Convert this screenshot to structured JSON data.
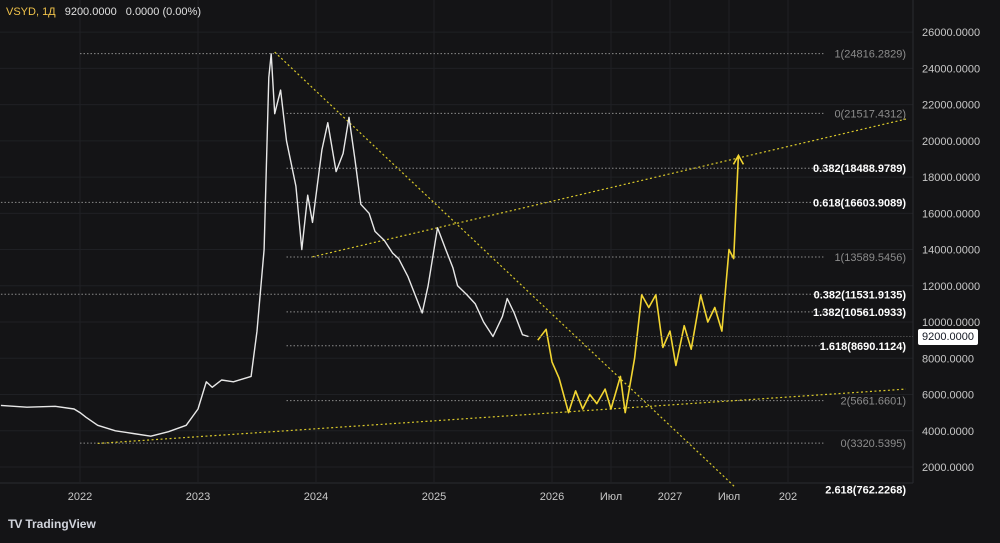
{
  "header": {
    "symbol": "VSYD, 1Д",
    "price": "9200.0000",
    "change": "0.0000 (0.00%)"
  },
  "branding": {
    "logo_text": "TradingView",
    "icon": "tradingview-logo-icon"
  },
  "current_price_label": "9200.0000",
  "colors": {
    "background": "#141416",
    "price_line": "#e8e8e8",
    "forecast_line": "#f2d531",
    "trend_line": "#d9c82a",
    "fib_line": "#8a8a8a",
    "axis_text": "#c8c8c8"
  },
  "chart_data": {
    "type": "line",
    "yaxis": {
      "min": 1000,
      "max": 26000,
      "ticks": [
        "26000.0000",
        "24000.0000",
        "22000.0000",
        "20000.0000",
        "18000.0000",
        "16000.0000",
        "14000.0000",
        "12000.0000",
        "10000.0000",
        "8000.0000",
        "6000.0000",
        "4000.0000",
        "2000.0000"
      ]
    },
    "xaxis": {
      "ticks": [
        {
          "label": "2022",
          "t": 2022.0
        },
        {
          "label": "2023",
          "t": 2023.0
        },
        {
          "label": "2024",
          "t": 2024.0
        },
        {
          "label": "2025",
          "t": 2025.0
        },
        {
          "label": "2026",
          "t": 2026.0
        },
        {
          "label": "Июл",
          "t": 2026.5
        },
        {
          "label": "2027",
          "t": 2027.0
        },
        {
          "label": "Июл",
          "t": 2027.5
        },
        {
          "label": "202",
          "t": 2028.0
        }
      ]
    },
    "series": [
      {
        "kind": "price",
        "points": [
          [
            2021.33,
            5400
          ],
          [
            2021.55,
            5300
          ],
          [
            2021.79,
            5350
          ],
          [
            2021.95,
            5200
          ],
          [
            2022.0,
            5000
          ],
          [
            2022.05,
            4750
          ],
          [
            2022.15,
            4300
          ],
          [
            2022.3,
            4000
          ],
          [
            2022.45,
            3850
          ],
          [
            2022.6,
            3700
          ],
          [
            2022.75,
            3950
          ],
          [
            2022.9,
            4300
          ],
          [
            2023.0,
            5200
          ],
          [
            2023.07,
            6700
          ],
          [
            2023.12,
            6400
          ],
          [
            2023.2,
            6800
          ],
          [
            2023.3,
            6700
          ],
          [
            2023.45,
            7000
          ],
          [
            2023.5,
            9500
          ],
          [
            2023.56,
            14000
          ],
          [
            2023.6,
            23500
          ],
          [
            2023.62,
            24800
          ],
          [
            2023.65,
            21500
          ],
          [
            2023.7,
            22800
          ],
          [
            2023.75,
            20000
          ],
          [
            2023.83,
            17500
          ],
          [
            2023.88,
            14000
          ],
          [
            2023.93,
            17000
          ],
          [
            2023.97,
            15500
          ],
          [
            2024.05,
            19500
          ],
          [
            2024.1,
            21000
          ],
          [
            2024.17,
            18300
          ],
          [
            2024.23,
            19300
          ],
          [
            2024.28,
            21300
          ],
          [
            2024.33,
            19000
          ],
          [
            2024.38,
            16500
          ],
          [
            2024.45,
            16000
          ],
          [
            2024.5,
            15000
          ],
          [
            2024.58,
            14500
          ],
          [
            2024.65,
            13800
          ],
          [
            2024.7,
            13500
          ],
          [
            2024.78,
            12500
          ],
          [
            2024.84,
            11500
          ],
          [
            2024.9,
            10500
          ],
          [
            2024.95,
            12000
          ],
          [
            2025.03,
            15200
          ],
          [
            2025.1,
            14000
          ],
          [
            2025.16,
            13000
          ],
          [
            2025.2,
            12000
          ],
          [
            2025.28,
            11500
          ],
          [
            2025.35,
            11000
          ],
          [
            2025.42,
            10000
          ],
          [
            2025.5,
            9200
          ],
          [
            2025.58,
            10300
          ],
          [
            2025.62,
            11300
          ],
          [
            2025.68,
            10500
          ],
          [
            2025.75,
            9300
          ],
          [
            2025.8,
            9200
          ]
        ]
      },
      {
        "kind": "forecast",
        "points": [
          [
            2025.88,
            9000
          ],
          [
            2025.95,
            9600
          ],
          [
            2026.0,
            7800
          ],
          [
            2026.06,
            6900
          ],
          [
            2026.14,
            5000
          ],
          [
            2026.2,
            6200
          ],
          [
            2026.26,
            5200
          ],
          [
            2026.32,
            6000
          ],
          [
            2026.38,
            5500
          ],
          [
            2026.45,
            6300
          ],
          [
            2026.5,
            5200
          ],
          [
            2026.58,
            7000
          ],
          [
            2026.62,
            5000
          ],
          [
            2026.7,
            8000
          ],
          [
            2026.76,
            11500
          ],
          [
            2026.82,
            10800
          ],
          [
            2026.88,
            11500
          ],
          [
            2026.94,
            8600
          ],
          [
            2027.0,
            9500
          ],
          [
            2027.05,
            7600
          ],
          [
            2027.12,
            9800
          ],
          [
            2027.18,
            8500
          ],
          [
            2027.26,
            11500
          ],
          [
            2027.32,
            10000
          ],
          [
            2027.38,
            10800
          ],
          [
            2027.44,
            9500
          ],
          [
            2027.5,
            14000
          ],
          [
            2027.54,
            13500
          ],
          [
            2027.58,
            19200
          ]
        ]
      }
    ],
    "trendlines": [
      {
        "from": [
          2023.65,
          24900
        ],
        "to": [
          2027.55,
          900
        ]
      },
      {
        "from": [
          2023.97,
          13600
        ],
        "to": [
          2029.0,
          21200
        ]
      },
      {
        "from": [
          2022.15,
          3300
        ],
        "to": [
          2029.0,
          6300
        ]
      }
    ],
    "annotations": [
      {
        "text": "1(24816.2829)",
        "y": 24816,
        "x0": 2022.0,
        "x1": 2028.3,
        "bold": false
      },
      {
        "text": "0(21517.4312)",
        "y": 21517,
        "x0": 2023.75,
        "x1": 2028.3,
        "bold": false
      },
      {
        "text": "0.382(18488.9789)",
        "y": 18489,
        "x0": 2023.75,
        "x1": 2028.3,
        "bold": true
      },
      {
        "text": "0.618(16603.9089)",
        "y": 16604,
        "x0": 2021.33,
        "x1": 2028.3,
        "bold": true
      },
      {
        "text": "1(13589.5456)",
        "y": 13590,
        "x0": 2023.75,
        "x1": 2028.3,
        "bold": false
      },
      {
        "text": "0.382(11531.9135)",
        "y": 11532,
        "x0": 2021.33,
        "x1": 2028.3,
        "bold": true
      },
      {
        "text": "1.382(10561.0933)",
        "y": 10561,
        "x0": 2023.75,
        "x1": 2028.3,
        "bold": true
      },
      {
        "text": "1.618(8690.1124)",
        "y": 8690,
        "x0": 2023.75,
        "x1": 2028.3,
        "bold": true
      },
      {
        "text": "2(5661.6601)",
        "y": 5662,
        "x0": 2023.75,
        "x1": 2028.3,
        "bold": false
      },
      {
        "text": "0(3320.5395)",
        "y": 3321,
        "x0": 2022.0,
        "x1": 2028.3,
        "bold": false
      },
      {
        "text": "2.618(762.2268)",
        "y": 762,
        "x0": 2028.3,
        "x1": 2028.3,
        "bold": true
      }
    ],
    "arrow": {
      "at": [
        2027.58,
        19200
      ]
    },
    "title": "",
    "xlabel": "",
    "ylabel": ""
  }
}
